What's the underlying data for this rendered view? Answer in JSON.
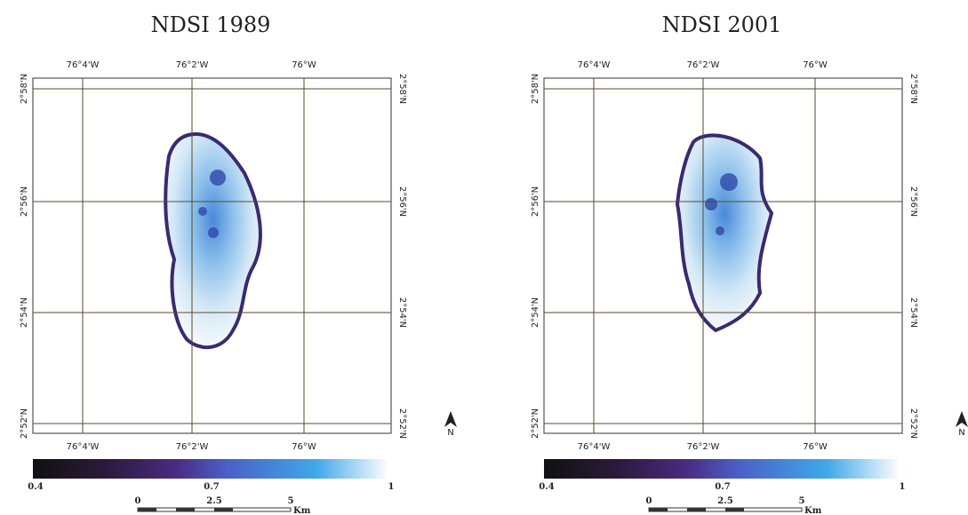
{
  "panels": [
    {
      "title": "NDSI 1989",
      "lon_labels": [
        "76°4'W",
        "76°2'W",
        "76°W"
      ],
      "lat_labels": [
        "2°58'N",
        "2°56'N",
        "2°54'N",
        "2°52'N"
      ],
      "colorbar_labels": [
        "0.4",
        "0.7",
        "1"
      ],
      "scalebar_labels": [
        "0",
        "2.5",
        "5"
      ],
      "scalebar_unit": "Km",
      "north": "N"
    },
    {
      "title": "NDSI 2001",
      "lon_labels": [
        "76°4'W",
        "76°2'W",
        "76°W"
      ],
      "lat_labels": [
        "2°58'N",
        "2°56'N",
        "2°54'N",
        "2°52'N"
      ],
      "colorbar_labels": [
        "0.4",
        "0.7",
        "1"
      ],
      "scalebar_labels": [
        "0",
        "2.5",
        "5"
      ],
      "scalebar_unit": "Km",
      "north": "N"
    }
  ]
}
